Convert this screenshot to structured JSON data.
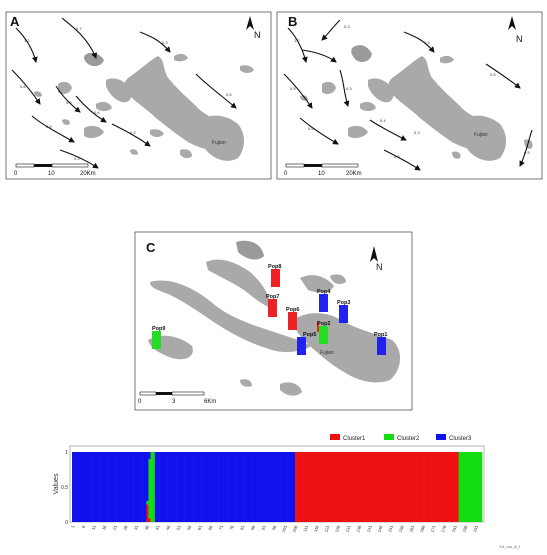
{
  "panels": {
    "a": {
      "letter": "A",
      "north": "N",
      "town": "Fujian",
      "scale": {
        "ticks": [
          "0",
          "10",
          "20Km"
        ]
      },
      "current_labels": [
        "1.2",
        "0.7",
        "0.3",
        "0.6",
        "0.8",
        "0.5",
        "0.5",
        "0.4",
        "0.3",
        "0.3"
      ]
    },
    "b": {
      "letter": "B",
      "north": "N",
      "town": "Fujian",
      "scale": {
        "ticks": [
          "0",
          "10",
          "20Km"
        ]
      },
      "current_labels": [
        "1.2",
        "0.3",
        "0.3",
        "0.5",
        "0.5",
        "0.3",
        "0.5",
        "0.4",
        "0.3",
        "0.3",
        "0.5"
      ]
    },
    "c": {
      "letter": "C",
      "north": "N",
      "town": "Fujian",
      "scale": {
        "ticks": [
          "0",
          "3",
          "6Km"
        ]
      },
      "pops": [
        {
          "label": "Pop8",
          "color": "#ee2222"
        },
        {
          "label": "Pop7",
          "color": "#ee2222"
        },
        {
          "label": "Pop6",
          "color": "#ee2222"
        },
        {
          "label": "Pop4",
          "color": "#2222ee"
        },
        {
          "label": "Pop3",
          "color": "#2222ee"
        },
        {
          "label": "Pop2",
          "color": "#22dd22"
        },
        {
          "label": "Pop5",
          "color": "#2222ee"
        },
        {
          "label": "Pop1",
          "color": "#2222ee"
        },
        {
          "label": "Pop9",
          "color": "#22dd22"
        }
      ]
    }
  },
  "chart_data": {
    "type": "bar",
    "stacked": true,
    "ylabel": "Values",
    "ylim": [
      0,
      1
    ],
    "yticks": [
      "0",
      "0.5",
      "1"
    ],
    "legend_placement": "top-right",
    "series": [
      {
        "name": "Cluster1",
        "color": "#ee1111"
      },
      {
        "name": "Cluster2",
        "color": "#11dd11"
      },
      {
        "name": "Cluster3",
        "color": "#1111ee"
      }
    ],
    "n_individuals": 193,
    "segments": [
      {
        "from": 1,
        "to": 36,
        "cluster": "Cluster3"
      },
      {
        "from": 37,
        "to": 39,
        "cluster": "Cluster2"
      },
      {
        "from": 40,
        "to": 105,
        "cluster": "Cluster3"
      },
      {
        "from": 106,
        "to": 182,
        "cluster": "Cluster1"
      },
      {
        "from": 183,
        "to": 193,
        "cluster": "Cluster2"
      }
    ],
    "mixed": [
      {
        "index": 36,
        "Cluster1": 0.25,
        "Cluster2": 0.05,
        "Cluster3": 0.7
      },
      {
        "index": 37,
        "Cluster1": 0.05,
        "Cluster2": 0.85,
        "Cluster3": 0.1
      }
    ],
    "xticks": [
      "1",
      "6",
      "11",
      "16",
      "21",
      "26",
      "31",
      "36",
      "41",
      "46",
      "51",
      "56",
      "61",
      "66",
      "71",
      "76",
      "81",
      "86",
      "91",
      "96",
      "101",
      "106",
      "111",
      "116",
      "121",
      "126",
      "131",
      "136",
      "141",
      "146",
      "151",
      "156",
      "161",
      "166",
      "171",
      "176",
      "181",
      "186",
      "191"
    ],
    "corner_note": "K4_run_8_f"
  }
}
